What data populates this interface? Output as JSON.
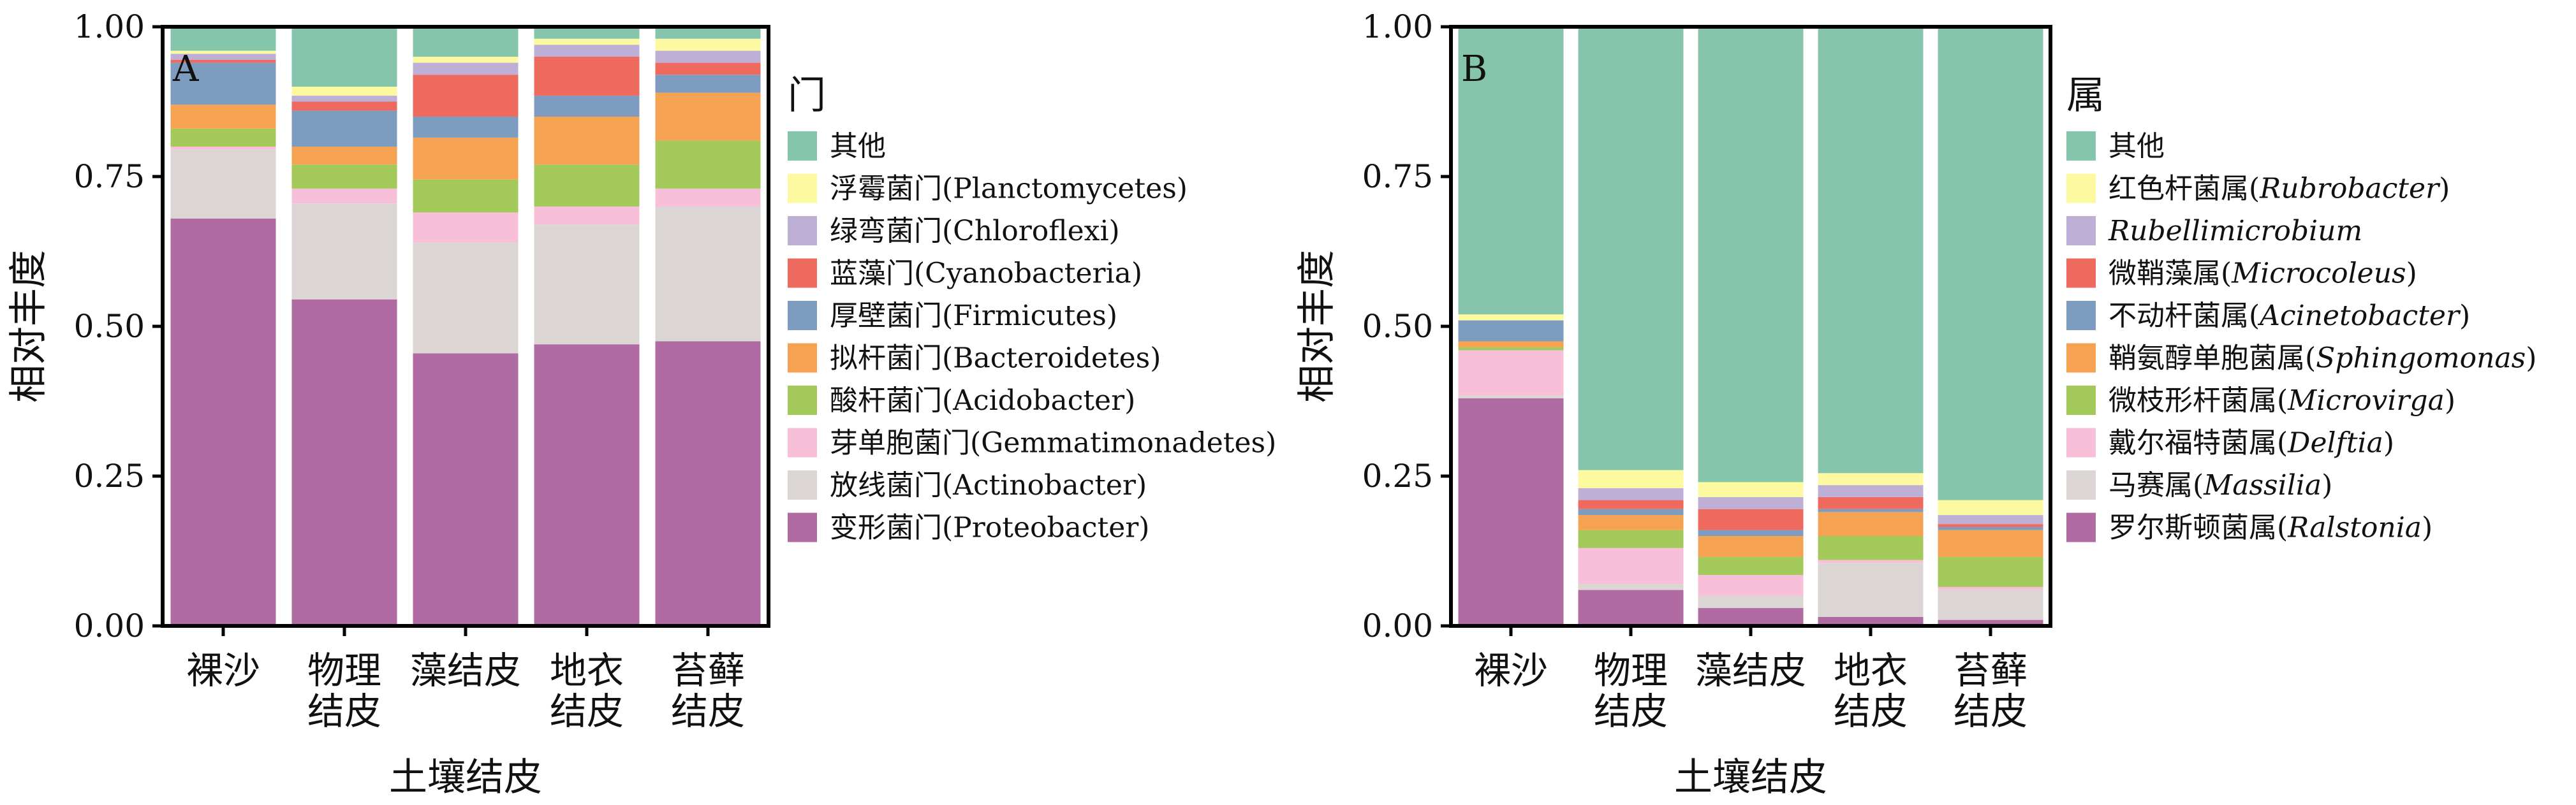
{
  "chart_data": [
    {
      "type": "bar",
      "stacked": true,
      "panel_label": "A",
      "xlabel": "土壤结皮",
      "ylabel": "相对丰度",
      "ylim": [
        0,
        1
      ],
      "yticks": [
        "0.00",
        "0.25",
        "0.50",
        "0.75",
        "1.00"
      ],
      "categories": [
        [
          "裸沙"
        ],
        [
          "物理",
          "结皮"
        ],
        [
          "藻结皮"
        ],
        [
          "地衣",
          "结皮"
        ],
        [
          "苔藓",
          "结皮"
        ]
      ],
      "legend_title": "门",
      "legend_placement": "right",
      "series": [
        {
          "name": "变形菌门(Proteobacter)",
          "color": "#B06BA3",
          "values": [
            0.68,
            0.545,
            0.455,
            0.47,
            0.475
          ]
        },
        {
          "name": "放线菌门(Actinobacter)",
          "color": "#DBD6D3",
          "values": [
            0.115,
            0.16,
            0.185,
            0.2,
            0.225
          ]
        },
        {
          "name": "芽单胞菌门(Gemmatimonadetes)",
          "color": "#F8C0D8",
          "values": [
            0.005,
            0.025,
            0.05,
            0.03,
            0.03
          ]
        },
        {
          "name": "酸杆菌门(Acidobacter)",
          "color": "#A3C95B",
          "values": [
            0.03,
            0.04,
            0.055,
            0.07,
            0.08
          ]
        },
        {
          "name": "拟杆菌门(Bacteroidetes)",
          "color": "#F5A352",
          "values": [
            0.04,
            0.03,
            0.07,
            0.08,
            0.08
          ]
        },
        {
          "name": "厚壁菌门(Firmicutes)",
          "color": "#7E9CC0",
          "values": [
            0.07,
            0.06,
            0.035,
            0.035,
            0.03
          ]
        },
        {
          "name": "蓝藻门(Cyanobacteria)",
          "color": "#EE6A5E",
          "values": [
            0.005,
            0.015,
            0.07,
            0.065,
            0.02
          ]
        },
        {
          "name": "绿弯菌门(Chloroflexi)",
          "color": "#BDAFD6",
          "values": [
            0.01,
            0.01,
            0.02,
            0.02,
            0.02
          ]
        },
        {
          "name": "浮霉菌门(Planctomycetes)",
          "color": "#FDF9A1",
          "values": [
            0.005,
            0.015,
            0.01,
            0.01,
            0.02
          ]
        },
        {
          "name": "其他",
          "color": "#85C5AC",
          "values": [
            0.04,
            0.1,
            0.05,
            0.02,
            0.02
          ]
        }
      ]
    },
    {
      "type": "bar",
      "stacked": true,
      "panel_label": "B",
      "xlabel": "土壤结皮",
      "ylabel": "相对丰度",
      "ylim": [
        0,
        1
      ],
      "yticks": [
        "0.00",
        "0.25",
        "0.50",
        "0.75",
        "1.00"
      ],
      "categories": [
        [
          "裸沙"
        ],
        [
          "物理",
          "结皮"
        ],
        [
          "藻结皮"
        ],
        [
          "地衣",
          "结皮"
        ],
        [
          "苔藓",
          "结皮"
        ]
      ],
      "legend_title": "属",
      "legend_placement": "right",
      "series": [
        {
          "label": "罗尔斯顿菌属",
          "genus": "Ralstonia",
          "color": "#B06BA3",
          "values": [
            0.38,
            0.06,
            0.03,
            0.015,
            0.01
          ]
        },
        {
          "label": "马赛属",
          "genus": "Massilia",
          "color": "#DBD6D3",
          "values": [
            0.005,
            0.01,
            0.02,
            0.09,
            0.05
          ]
        },
        {
          "label": "戴尔福特菌属",
          "genus": "Delftia",
          "color": "#F8C0D8",
          "values": [
            0.075,
            0.06,
            0.035,
            0.005,
            0.005
          ]
        },
        {
          "label": "微枝形杆菌属",
          "genus": "Microvirga",
          "color": "#A3C95B",
          "values": [
            0.005,
            0.03,
            0.03,
            0.04,
            0.05
          ]
        },
        {
          "label": "鞘氨醇单胞菌属",
          "genus": "Sphingomonas",
          "color": "#F5A352",
          "values": [
            0.01,
            0.025,
            0.035,
            0.04,
            0.045
          ]
        },
        {
          "label": "不动杆菌属",
          "genus": "Acinetobacter",
          "color": "#7E9CC0",
          "values": [
            0.035,
            0.01,
            0.01,
            0.005,
            0.005
          ]
        },
        {
          "label": "微鞘藻属",
          "genus": "Microcoleus",
          "color": "#EE6A5E",
          "values": [
            0.0,
            0.015,
            0.035,
            0.02,
            0.005
          ]
        },
        {
          "label": "",
          "genus": "Rubellimicrobium",
          "color": "#BDAFD6",
          "values": [
            0.0,
            0.02,
            0.02,
            0.02,
            0.015
          ]
        },
        {
          "label": "红色杆菌属",
          "genus": "Rubrobacter",
          "color": "#FDF9A1",
          "values": [
            0.01,
            0.03,
            0.025,
            0.02,
            0.025
          ]
        },
        {
          "label": "其他",
          "genus": "",
          "color": "#85C5AC",
          "values": [
            0.48,
            0.74,
            0.76,
            0.745,
            0.79
          ]
        }
      ]
    }
  ]
}
